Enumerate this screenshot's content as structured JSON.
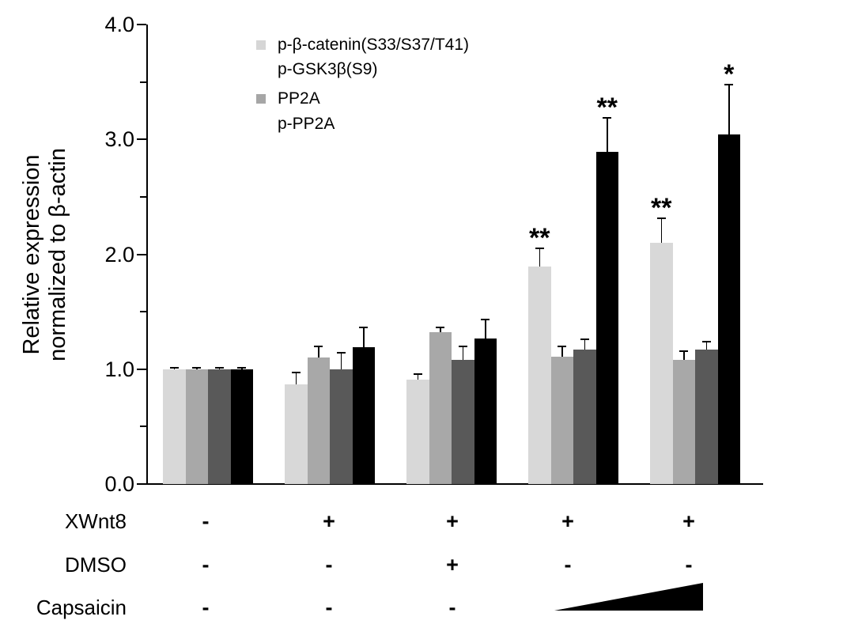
{
  "chart_data": {
    "type": "bar",
    "title": "",
    "ylabel_lines": [
      "Relative expression",
      "normalized to β-actin"
    ],
    "xlabel": "",
    "ylim": [
      0.0,
      4.0
    ],
    "ytick_labels": [
      "0.0",
      "1.0",
      "2.0",
      "3.0",
      "4.0"
    ],
    "yticks": [
      0,
      1,
      2,
      3,
      4
    ],
    "yticks_minor": [
      0.5,
      1.5,
      2.5,
      3.5
    ],
    "grid": "off",
    "legend_position": "upper-left-inside",
    "groups": 5,
    "series": [
      {
        "name": "p-β-catenin(S33/S37/T41)",
        "color": "#d8d8d8",
        "values": [
          1.0,
          0.87,
          0.91,
          1.89,
          2.1
        ],
        "errors_plus": [
          0.01,
          0.1,
          0.05,
          0.16,
          0.21
        ]
      },
      {
        "name": "p-GSK3β(S9)",
        "color": "#a8a8a8",
        "values": [
          1.0,
          1.1,
          1.32,
          1.11,
          1.08
        ],
        "errors_plus": [
          0.01,
          0.1,
          0.04,
          0.09,
          0.08
        ]
      },
      {
        "name": "PP2A",
        "color": "#595959",
        "values": [
          1.0,
          1.0,
          1.08,
          1.17,
          1.17
        ],
        "errors_plus": [
          0.01,
          0.14,
          0.12,
          0.09,
          0.07
        ]
      },
      {
        "name": "p-PP2A",
        "color": "#000000",
        "values": [
          1.0,
          1.19,
          1.27,
          2.89,
          3.04
        ],
        "errors_plus": [
          0.01,
          0.17,
          0.16,
          0.3,
          0.44
        ]
      }
    ],
    "significance": [
      {
        "group": 3,
        "series": 0,
        "text": "**"
      },
      {
        "group": 3,
        "series": 3,
        "text": "**"
      },
      {
        "group": 4,
        "series": 0,
        "text": "**"
      },
      {
        "group": 4,
        "series": 3,
        "text": "*"
      }
    ],
    "legend": [
      {
        "label": "p-β-catenin(S33/S37/T41)",
        "swatch": "#d6d6d6"
      },
      {
        "label": "p-GSK3β(S9)",
        "swatch": null
      },
      {
        "label": "PP2A",
        "swatch": "#a6a6a6"
      },
      {
        "label": "p-PP2A",
        "swatch": null
      }
    ],
    "treatment_rows": [
      {
        "label": "XWnt8",
        "symbols": [
          "-",
          "+",
          "+",
          "+",
          "+"
        ]
      },
      {
        "label": "DMSO",
        "symbols": [
          "-",
          "-",
          "+",
          "-",
          "-"
        ]
      },
      {
        "label": "Capsaicin",
        "symbols": [
          "-",
          "-",
          "-",
          "",
          ""
        ],
        "gradient_triangle": {
          "from_group": 3,
          "to_group": 4,
          "meaning": "increasing capsaicin dose"
        }
      }
    ],
    "colors": {
      "axis": "#000000",
      "background": "#ffffff"
    }
  }
}
